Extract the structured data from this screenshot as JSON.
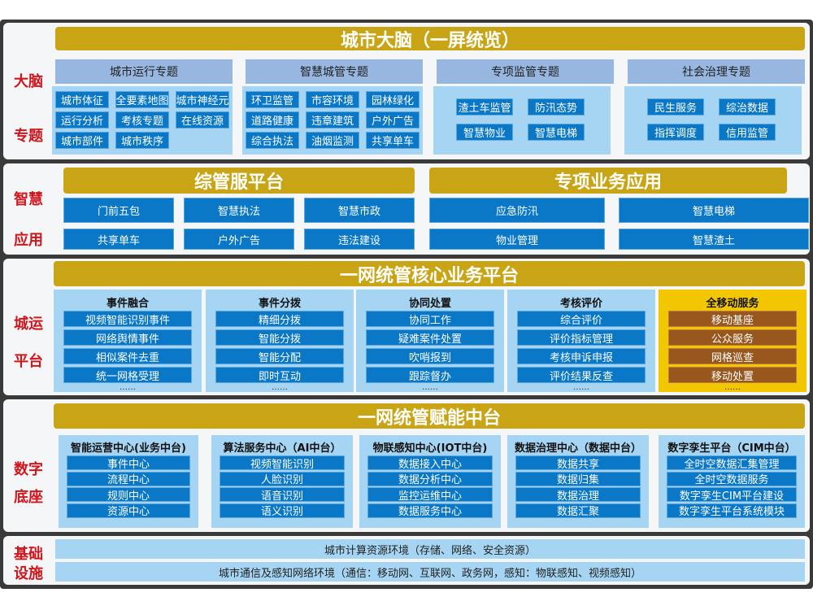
{
  "brain": {
    "side": [
      "大脑",
      "专题"
    ],
    "title": "城市大脑（一屏统览）",
    "groups": [
      {
        "header": "城市运行专题",
        "items": [
          "城市体征",
          "全要素地图",
          "城市神经元",
          "运行分析",
          "考核专题",
          "在线资源",
          "城市部件",
          "城市秩序"
        ]
      },
      {
        "header": "智慧城管专题",
        "items": [
          "环卫监管",
          "市容环境",
          "园林绿化",
          "道路健康",
          "违章建筑",
          "户外广告",
          "综合执法",
          "油烟监测",
          "共享单车"
        ]
      },
      {
        "header": "专项监管专题",
        "items": [
          "渣土车监管",
          "防汛态势",
          "智慧物业",
          "智慧电梯"
        ]
      },
      {
        "header": "社会治理专题",
        "items": [
          "民生服务",
          "综治数据",
          "指挥调度",
          "信用监管"
        ]
      }
    ]
  },
  "apps": {
    "side": [
      "智慧",
      "应用"
    ],
    "left": {
      "title": "综管服平台",
      "items": [
        "门前五包",
        "智慧执法",
        "智慧市政",
        "共享单车",
        "户外广告",
        "违法建设"
      ]
    },
    "right": {
      "title": "专项业务应用",
      "items": [
        "应急防汛",
        "智慧电梯",
        "物业管理",
        "智慧渣土"
      ]
    }
  },
  "core": {
    "side": [
      "城运",
      "平台"
    ],
    "title": "一网统管核心业务平台",
    "more": "……",
    "columns": [
      {
        "title": "事件融合",
        "items": [
          "视频智能识别事件",
          "网络舆情事件",
          "相似案件去重",
          "统一网格受理"
        ]
      },
      {
        "title": "事件分拨",
        "items": [
          "精细分拨",
          "智能分拨",
          "智能分配",
          "即时互动"
        ]
      },
      {
        "title": "协同处置",
        "items": [
          "协同工作",
          "疑难案件处置",
          "吹哨报到",
          "跟踪督办"
        ]
      },
      {
        "title": "考核评价",
        "items": [
          "综合评价",
          "评价指标管理",
          "考核申诉申报",
          "评价结果反查"
        ]
      },
      {
        "title": "全移动服务",
        "items": [
          "移动基座",
          "公众服务",
          "网格巡查",
          "移动处置"
        ]
      }
    ]
  },
  "base": {
    "side": [
      "数字",
      "底座"
    ],
    "title": "一网统管赋能中台",
    "columns": [
      {
        "title": "智能运营中心(业务中台)",
        "items": [
          "事件中心",
          "流程中心",
          "规则中心",
          "资源中心"
        ]
      },
      {
        "title": "算法服务中心（AI中台）",
        "items": [
          "视频智能识别",
          "人脸识别",
          "语音识别",
          "语义识别"
        ]
      },
      {
        "title": "物联感知中心(IOT中台)",
        "items": [
          "数据接入中心",
          "数据分析中心",
          "监控运维中心",
          "数据服务中心"
        ]
      },
      {
        "title": "数据治理中心（数据中台）",
        "items": [
          "数据共享",
          "数据归集",
          "数据治理",
          "数据汇聚"
        ]
      },
      {
        "title": "数字孪生平台（CIM中台）",
        "items": [
          "全时空数据汇集管理",
          "全时空数据服务",
          "数字孪生CIM平台建设",
          "数字孪生平台系统模块"
        ]
      }
    ]
  },
  "infra": {
    "side": [
      "基础",
      "设施"
    ],
    "rows": [
      "城市计算资源环境（存储、网络、安全资源）",
      "城市通信及感知网络环境（通信：移动网、互联网、政务网，感知：物联感知、视频感知）"
    ]
  },
  "colors": {
    "gold": "#c9a516",
    "blue": "#0a78c6",
    "panel": "#a6d5f3",
    "header": "#97b7e0",
    "side": "#d0161c",
    "mobile": "#f2c600",
    "brown": "#98571c"
  }
}
